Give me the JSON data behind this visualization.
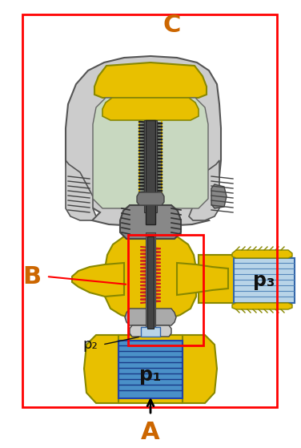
{
  "fig_width": 3.76,
  "fig_height": 5.59,
  "dpi": 100,
  "bg_color": "#ffffff",
  "label_A": "A",
  "label_B": "B",
  "label_C": "C",
  "label_p1": "p₁",
  "label_p2": "p₂",
  "label_p3": "p₃",
  "yellow": "#E8C000",
  "yellow_ec": "#888800",
  "blue_p1": "#4A90C8",
  "blue_p3": "#B8D4E8",
  "gray_outer": "#CCCCCC",
  "gray_inner": "#AAAAAA",
  "light_green": "#C8D8C0",
  "dark_gray": "#444444",
  "med_gray": "#777777",
  "red_spring": "#CC2222",
  "text_orange": "#CC6600",
  "red_box": "#CC0000"
}
